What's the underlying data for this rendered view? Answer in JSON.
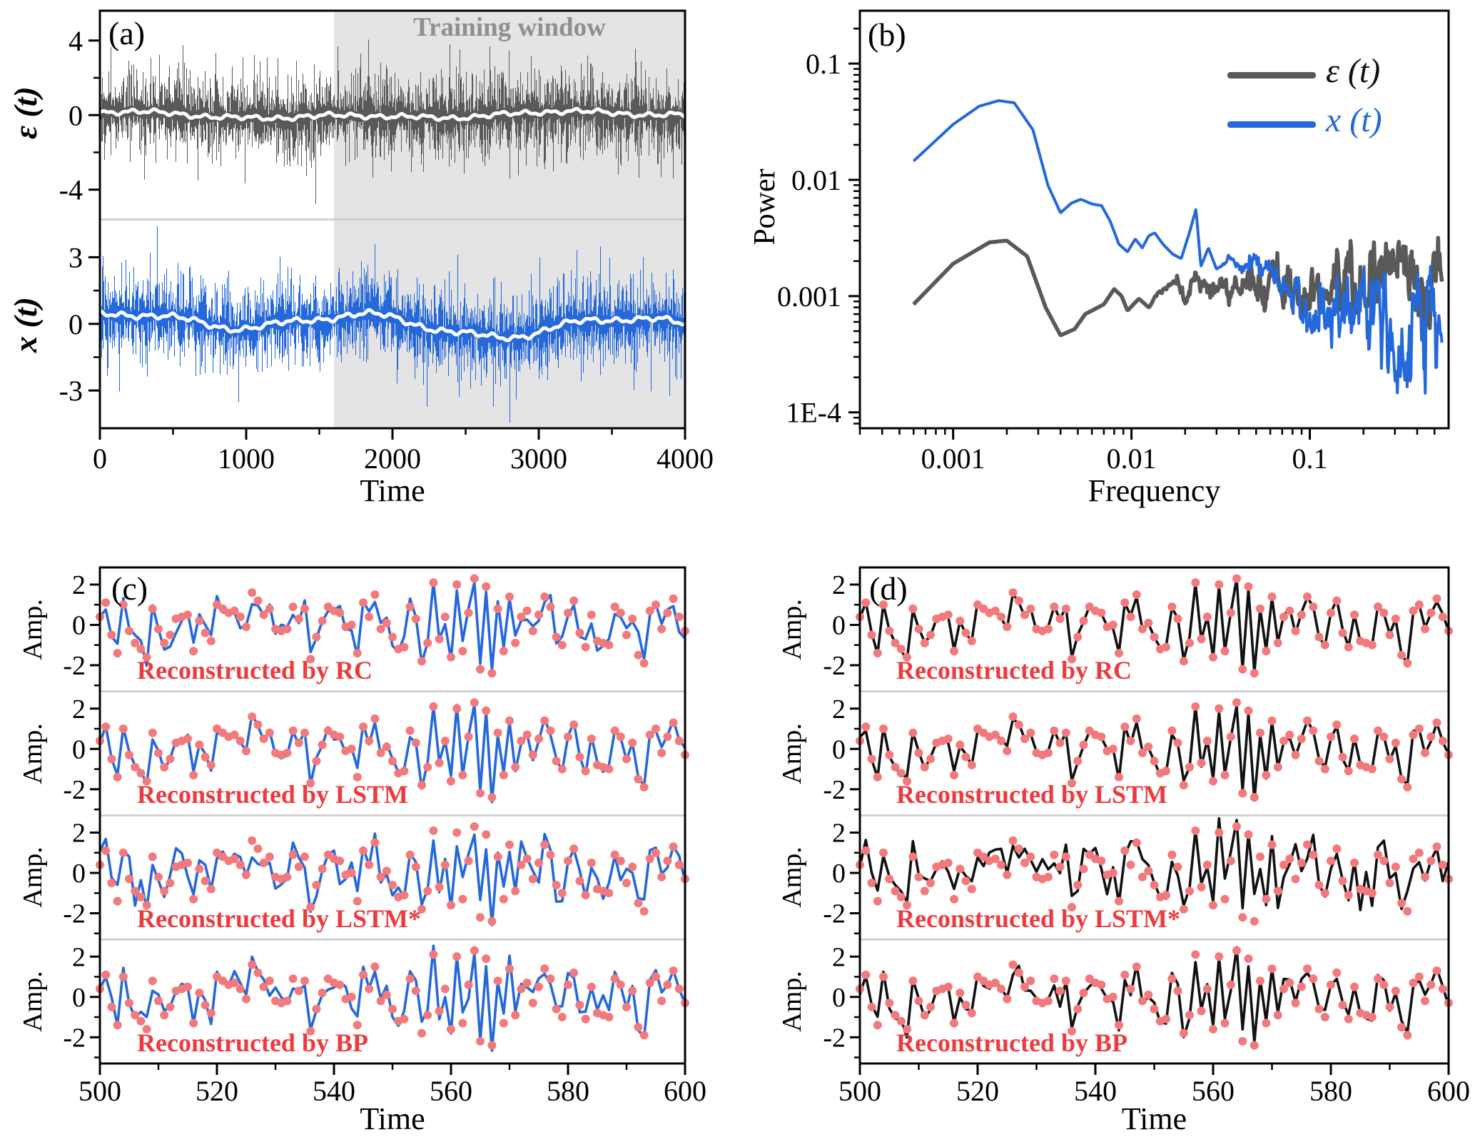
{
  "colors": {
    "accent_blue": "#2468d9",
    "series_gray": "#595959",
    "dot_salmon": "#f2797c",
    "label_red": "#ee3a3e",
    "window_gray": "#e4e4e4",
    "separator_gray": "#c9c9c9",
    "smooth_white": "#ffffff"
  },
  "chart_data": [
    {
      "id": "a",
      "type": "line",
      "label": "(a)",
      "xlabel": "Time",
      "xlim": [
        0,
        4000
      ],
      "x_ticks": [
        0,
        1000,
        2000,
        3000,
        4000
      ],
      "x_minor_ticks": [
        500,
        1500,
        2500,
        3500
      ],
      "training_window": {
        "label": "Training window",
        "start": 1600,
        "end": 4000,
        "fill": "#e4e4e4",
        "label_color": "#8f8f8f"
      },
      "subpanels": [
        {
          "ylabel": "ε (t)",
          "y_ticks": [
            4,
            0,
            -4
          ],
          "y_minor_ticks": [
            2,
            -2
          ],
          "ylim": [
            -5.6,
            5.6
          ],
          "color": "#595959",
          "noise": {
            "std": 1.1,
            "base": 0.2,
            "spike_prob": 0.022,
            "seed": 7
          },
          "trend": [
            [
              0.1,
              230,
              0.5
            ],
            [
              0.12,
              600,
              2.0
            ],
            [
              0.05,
              95,
              4.0
            ]
          ],
          "smooth_color": "#ffffff"
        },
        {
          "ylabel": "x (t)",
          "y_ticks": [
            3,
            0,
            -3
          ],
          "y_minor_ticks": [
            1.5,
            -1.5
          ],
          "ylim": [
            -4.7,
            4.7
          ],
          "color": "#2468d9",
          "noise": {
            "std": 1.0,
            "base": 0.15,
            "spike_prob": 0.02,
            "seed": 8
          },
          "trend": [
            [
              0.38,
              270,
              1.1
            ],
            [
              0.22,
              640,
              0.2
            ],
            [
              0.12,
              105,
              2.4
            ]
          ],
          "smooth_color": "#ffffff"
        }
      ]
    },
    {
      "id": "b",
      "type": "line",
      "label": "(b)",
      "xlabel": "Frequency",
      "ylabel": "Power",
      "xscale": "log",
      "yscale": "log",
      "xlim": [
        0.0003,
        0.6
      ],
      "ylim": [
        7.3e-05,
        0.285
      ],
      "x_ticks": [
        0.001,
        0.01,
        0.1
      ],
      "x_tick_labels": [
        "0.001",
        "0.01",
        "0.1"
      ],
      "y_ticks": [
        0.1,
        0.01,
        0.001,
        0.0001
      ],
      "y_tick_labels": [
        "0.1",
        "0.01",
        "0.001",
        "1E-4"
      ],
      "legend": [
        {
          "label": "ε (t)",
          "color": "#595959"
        },
        {
          "label": "x (t)",
          "color": "#2468d9"
        }
      ],
      "series": [
        {
          "name": "epsilon-power-spectrum",
          "color": "#595959",
          "width": 5.5,
          "anchors": [
            [
              0.0006,
              0.00085
            ],
            [
              0.001,
              0.0019
            ],
            [
              0.0016,
              0.0029
            ],
            [
              0.002,
              0.003
            ],
            [
              0.0026,
              0.0022
            ],
            [
              0.0033,
              0.0008
            ],
            [
              0.004,
              0.00046
            ],
            [
              0.0048,
              0.00052
            ],
            [
              0.0055,
              0.0007
            ],
            [
              0.0063,
              0.00078
            ],
            [
              0.007,
              0.00085
            ],
            [
              0.008,
              0.00115
            ],
            [
              0.0088,
              0.001
            ],
            [
              0.0095,
              0.00075
            ],
            [
              0.011,
              0.00095
            ],
            [
              0.0125,
              0.0008
            ],
            [
              0.014,
              0.00105
            ],
            [
              0.016,
              0.0012
            ],
            [
              0.018,
              0.00135
            ],
            [
              0.02,
              0.00095
            ],
            [
              0.023,
              0.0015
            ],
            [
              0.026,
              0.00105
            ],
            [
              0.03,
              0.0013
            ],
            [
              0.035,
              0.0011
            ],
            [
              0.04,
              0.00125
            ],
            [
              0.05,
              0.00105
            ],
            [
              0.065,
              0.0013
            ],
            [
              0.08,
              0.00115
            ],
            [
              0.1,
              0.00135
            ],
            [
              0.13,
              0.0012
            ],
            [
              0.17,
              0.0014
            ],
            [
              0.22,
              0.0012
            ],
            [
              0.3,
              0.0013
            ],
            [
              0.4,
              0.0011
            ],
            [
              0.55,
              0.001
            ]
          ],
          "noise": {
            "start": 0.012,
            "step": 0.16,
            "max": 0.32,
            "seed": 21
          }
        },
        {
          "name": "x-power-spectrum",
          "color": "#2468d9",
          "width": 4,
          "anchors": [
            [
              0.0006,
              0.0145
            ],
            [
              0.001,
              0.03
            ],
            [
              0.0014,
              0.043
            ],
            [
              0.0018,
              0.048
            ],
            [
              0.0022,
              0.046
            ],
            [
              0.0028,
              0.027
            ],
            [
              0.0034,
              0.009
            ],
            [
              0.004,
              0.0052
            ],
            [
              0.0046,
              0.0063
            ],
            [
              0.0052,
              0.0068
            ],
            [
              0.006,
              0.0062
            ],
            [
              0.0068,
              0.006
            ],
            [
              0.0076,
              0.0044
            ],
            [
              0.0085,
              0.0028
            ],
            [
              0.0095,
              0.0024
            ],
            [
              0.0105,
              0.0031
            ],
            [
              0.0115,
              0.0026
            ],
            [
              0.0125,
              0.0033
            ],
            [
              0.0135,
              0.0035
            ],
            [
              0.015,
              0.0028
            ],
            [
              0.017,
              0.0023
            ],
            [
              0.019,
              0.0021
            ],
            [
              0.021,
              0.0034
            ],
            [
              0.023,
              0.0056
            ],
            [
              0.0245,
              0.0018
            ],
            [
              0.027,
              0.0026
            ],
            [
              0.03,
              0.0017
            ],
            [
              0.035,
              0.0021
            ],
            [
              0.04,
              0.0016
            ],
            [
              0.05,
              0.0019
            ],
            [
              0.065,
              0.0013
            ],
            [
              0.08,
              0.0011
            ],
            [
              0.1,
              0.0009
            ],
            [
              0.13,
              0.0008
            ],
            [
              0.17,
              0.0006
            ],
            [
              0.22,
              0.0007
            ],
            [
              0.3,
              0.0005
            ],
            [
              0.4,
              0.0006
            ],
            [
              0.55,
              0.0007
            ]
          ],
          "noise": {
            "start": 0.03,
            "step": 0.22,
            "max": 0.55,
            "seed": 33
          }
        }
      ]
    },
    {
      "id": "c",
      "type": "line+scatter",
      "label": "(c)",
      "xlabel": "Time",
      "ylabel": "Amp.",
      "xlim": [
        500,
        600
      ],
      "x_ticks": [
        500,
        520,
        540,
        560,
        580,
        600
      ],
      "x_minor_ticks": [
        510,
        530,
        550,
        570,
        590
      ],
      "y_ticks": [
        2,
        0,
        -2
      ],
      "y_minor_ticks": [
        3,
        1,
        -1,
        -3
      ],
      "ylim": [
        -3.3,
        2.85
      ],
      "line_color": "#2468d9",
      "dot_color": "#f2797c",
      "label_color": "#ee3a3e",
      "target_series": {
        "name": "original-signal",
        "x_start": 500,
        "x_step": 1,
        "values": [
          0.4,
          1.1,
          -0.5,
          -1.4,
          1.0,
          -0.3,
          -0.9,
          -1.2,
          -1.6,
          0.8,
          -0.2,
          -0.9,
          -0.5,
          0.3,
          0.4,
          0.5,
          -1.3,
          0.2,
          -0.4,
          -0.8,
          1.0,
          0.8,
          0.6,
          0.7,
          0.4,
          -0.1,
          1.6,
          1.2,
          0.5,
          0.8,
          -0.2,
          -0.3,
          -0.2,
          0.9,
          0.3,
          0.8,
          -1.7,
          -0.6,
          0.2,
          0.9,
          0.7,
          0.6,
          -0.1,
          0.0,
          -1.4,
          1.1,
          0.4,
          1.5,
          -0.2,
          0.1,
          -0.6,
          -1.2,
          -1.1,
          0.9,
          0.3,
          -1.8,
          -0.9,
          2.1,
          -0.7,
          0.4,
          -1.6,
          2.0,
          -1.3,
          0.6,
          2.3,
          -2.2,
          1.9,
          -2.4,
          0.8,
          -1.3,
          1.4,
          -0.9,
          0.4,
          0.7,
          -0.3,
          0.5,
          1.4,
          0.9,
          -0.6,
          -1.0,
          0.6,
          1.2,
          -0.4,
          -1.1,
          0.5,
          -0.8,
          -0.9,
          -1.0,
          0.9,
          0.6,
          -0.5,
          0.3,
          -1.5,
          -1.9,
          0.7,
          1.0,
          -0.2,
          0.6,
          1.3,
          0.4,
          -0.3
        ]
      },
      "subpanels": [
        {
          "label": "Reconstructed by RC",
          "scale": 0.88,
          "deviation": 0.3,
          "seed": 101
        },
        {
          "label": "Reconstructed by LSTM",
          "scale": 0.96,
          "deviation": 0.15,
          "seed": 102
        },
        {
          "label": "Reconstructed by LSTM*",
          "scale": 0.85,
          "deviation": 0.5,
          "seed": 103
        },
        {
          "label": "Reconstructed by BP",
          "scale": 0.88,
          "deviation": 0.33,
          "seed": 104
        }
      ]
    },
    {
      "id": "d",
      "type": "line+scatter",
      "label": "(d)",
      "xlabel": "Time",
      "ylabel": "Amp.",
      "xlim": [
        500,
        600
      ],
      "x_ticks": [
        500,
        520,
        540,
        560,
        580,
        600
      ],
      "x_minor_ticks": [
        510,
        530,
        550,
        570,
        590
      ],
      "y_ticks": [
        2,
        0,
        -2
      ],
      "y_minor_ticks": [
        3,
        1,
        -1,
        -3
      ],
      "ylim": [
        -3.3,
        2.85
      ],
      "line_color": "#111111",
      "dot_color": "#f2797c",
      "label_color": "#ee3a3e",
      "target_series_ref": "c",
      "subpanels": [
        {
          "label": "Reconstructed by RC",
          "scale": 0.98,
          "deviation": 0.07,
          "seed": 201
        },
        {
          "label": "Reconstructed by LSTM",
          "scale": 0.97,
          "deviation": 0.1,
          "seed": 202
        },
        {
          "label": "Reconstructed by LSTM*",
          "scale": 0.85,
          "deviation": 0.52,
          "seed": 203
        },
        {
          "label": "Reconstructed by BP",
          "scale": 0.92,
          "deviation": 0.26,
          "seed": 204
        }
      ]
    }
  ]
}
